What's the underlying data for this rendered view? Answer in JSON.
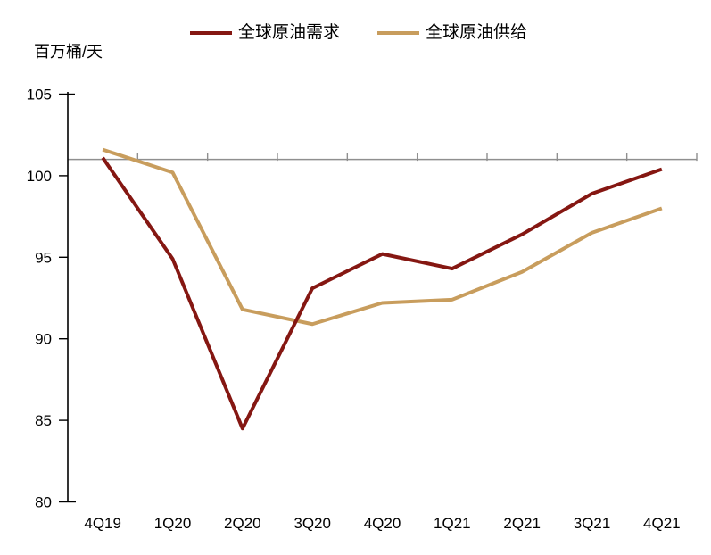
{
  "chart_data": {
    "type": "line",
    "unit_label": "百万桶/天",
    "categories": [
      "4Q19",
      "1Q20",
      "2Q20",
      "3Q20",
      "4Q20",
      "1Q21",
      "2Q21",
      "3Q21",
      "4Q21"
    ],
    "series": [
      {
        "name": "全球原油需求",
        "color": "#851712",
        "values": [
          101.1,
          94.9,
          84.5,
          93.1,
          95.2,
          94.3,
          96.4,
          98.9,
          100.4
        ]
      },
      {
        "name": "全球原油供给",
        "color": "#C89D5D",
        "values": [
          101.6,
          100.2,
          91.8,
          90.9,
          92.2,
          92.4,
          94.1,
          96.5,
          98.0
        ]
      }
    ],
    "reference_line": {
      "value": 101,
      "color": "#8F8F8F"
    },
    "y_axis": {
      "min": 80,
      "max": 105,
      "ticks": [
        105,
        100,
        95,
        90,
        85,
        80
      ]
    },
    "legend_position": "top",
    "grid": false,
    "axis_color": "#000000"
  }
}
